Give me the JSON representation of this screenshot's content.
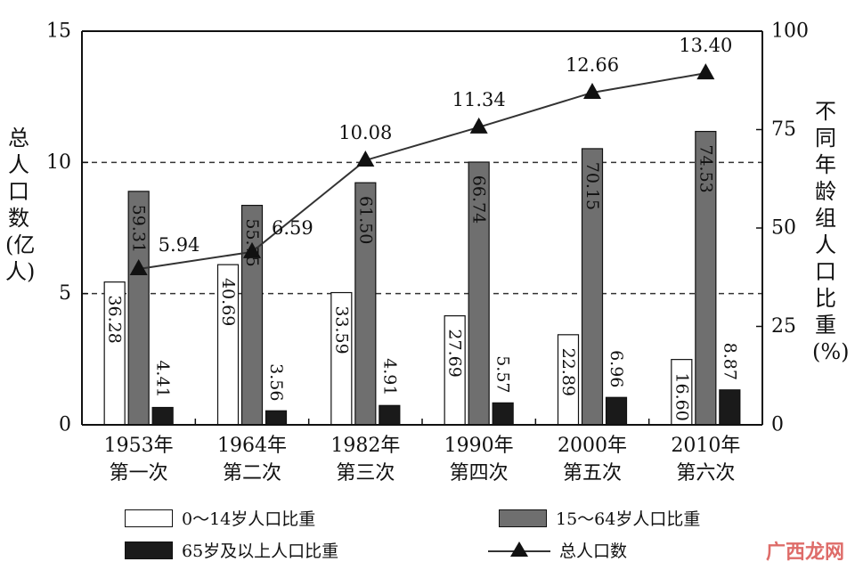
{
  "chart_data": {
    "type": "bar",
    "categories": [
      {
        "year": "1953年",
        "census": "第一次"
      },
      {
        "year": "1964年",
        "census": "第二次"
      },
      {
        "year": "1982年",
        "census": "第三次"
      },
      {
        "year": "1990年",
        "census": "第四次"
      },
      {
        "year": "2000年",
        "census": "第五次"
      },
      {
        "year": "2010年",
        "census": "第六次"
      }
    ],
    "series": [
      {
        "name": "0～14岁人口比重",
        "axis": "right",
        "color": "#ffffff",
        "values": [
          36.28,
          40.69,
          33.59,
          27.69,
          22.89,
          16.6
        ],
        "labels": [
          "36.28",
          "40.69",
          "33.59",
          "27.69",
          "22.89",
          "16.60"
        ]
      },
      {
        "name": "15～64岁人口比重",
        "axis": "right",
        "color": "#6f6f6f",
        "values": [
          59.31,
          55.75,
          61.5,
          66.74,
          70.15,
          74.53
        ],
        "labels": [
          "59.31",
          "55.75",
          "61.50",
          "66.74",
          "70.15",
          "74.53"
        ]
      },
      {
        "name": "65岁及以上人口比重",
        "axis": "right",
        "color": "#1a1a1a",
        "values": [
          4.41,
          3.56,
          4.91,
          5.57,
          6.96,
          8.87
        ],
        "labels": [
          "4.41",
          "3.56",
          "4.91",
          "5.57",
          "6.96",
          "8.87"
        ]
      }
    ],
    "line": {
      "name": "总人口数",
      "axis": "left",
      "values": [
        5.94,
        6.59,
        10.08,
        11.34,
        12.66,
        13.4
      ],
      "labels": [
        "5.94",
        "6.59",
        "10.08",
        "11.34",
        "12.66",
        "13.40"
      ]
    },
    "left_axis": {
      "label": "总人口数(亿人)",
      "ylim": [
        0,
        15
      ],
      "ticks": [
        "0",
        "5",
        "10",
        "15"
      ]
    },
    "right_axis": {
      "label": "不同年龄组人口比重(%)",
      "ylim": [
        0,
        100
      ],
      "ticks": [
        "0",
        "25",
        "50",
        "75",
        "100"
      ]
    },
    "grid": "dashed at 5 and 10",
    "legend_position": "bottom"
  },
  "watermark": "广西龙网"
}
